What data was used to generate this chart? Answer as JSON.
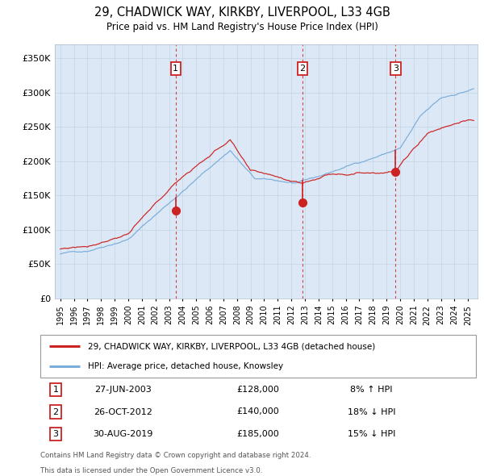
{
  "title1": "29, CHADWICK WAY, KIRKBY, LIVERPOOL, L33 4GB",
  "title2": "Price paid vs. HM Land Registry's House Price Index (HPI)",
  "legend_line1": "29, CHADWICK WAY, KIRKBY, LIVERPOOL, L33 4GB (detached house)",
  "legend_line2": "HPI: Average price, detached house, Knowsley",
  "footer1": "Contains HM Land Registry data © Crown copyright and database right 2024.",
  "footer2": "This data is licensed under the Open Government Licence v3.0.",
  "sale_markers": [
    {
      "label": "1",
      "date_num": 2003.49,
      "price": 128000,
      "note": "27-JUN-2003",
      "amount": "£128,000",
      "pct": "8% ↑ HPI"
    },
    {
      "label": "2",
      "date_num": 2012.82,
      "price": 140000,
      "note": "26-OCT-2012",
      "amount": "£140,000",
      "pct": "18% ↓ HPI"
    },
    {
      "label": "3",
      "date_num": 2019.66,
      "price": 185000,
      "note": "30-AUG-2019",
      "amount": "£185,000",
      "pct": "15% ↓ HPI"
    }
  ],
  "hpi_color": "#7aadda",
  "price_color": "#cc2222",
  "bg_color": "#dce8f5",
  "grid_color": "#c5d5e5",
  "vline_color": "#cc2222",
  "marker_color": "#cc2222",
  "ylim": [
    0,
    370000
  ],
  "ytick_vals": [
    0,
    50000,
    100000,
    150000,
    200000,
    250000,
    300000,
    350000
  ],
  "ytick_labels": [
    "£0",
    "£50K",
    "£100K",
    "£150K",
    "£200K",
    "£250K",
    "£300K",
    "£350K"
  ],
  "xlim_start": 1994.6,
  "xlim_end": 2025.7,
  "xtick_years": [
    1995,
    1996,
    1997,
    1998,
    1999,
    2000,
    2001,
    2002,
    2003,
    2004,
    2005,
    2006,
    2007,
    2008,
    2009,
    2010,
    2011,
    2012,
    2013,
    2014,
    2015,
    2016,
    2017,
    2018,
    2019,
    2020,
    2021,
    2022,
    2023,
    2024,
    2025
  ]
}
